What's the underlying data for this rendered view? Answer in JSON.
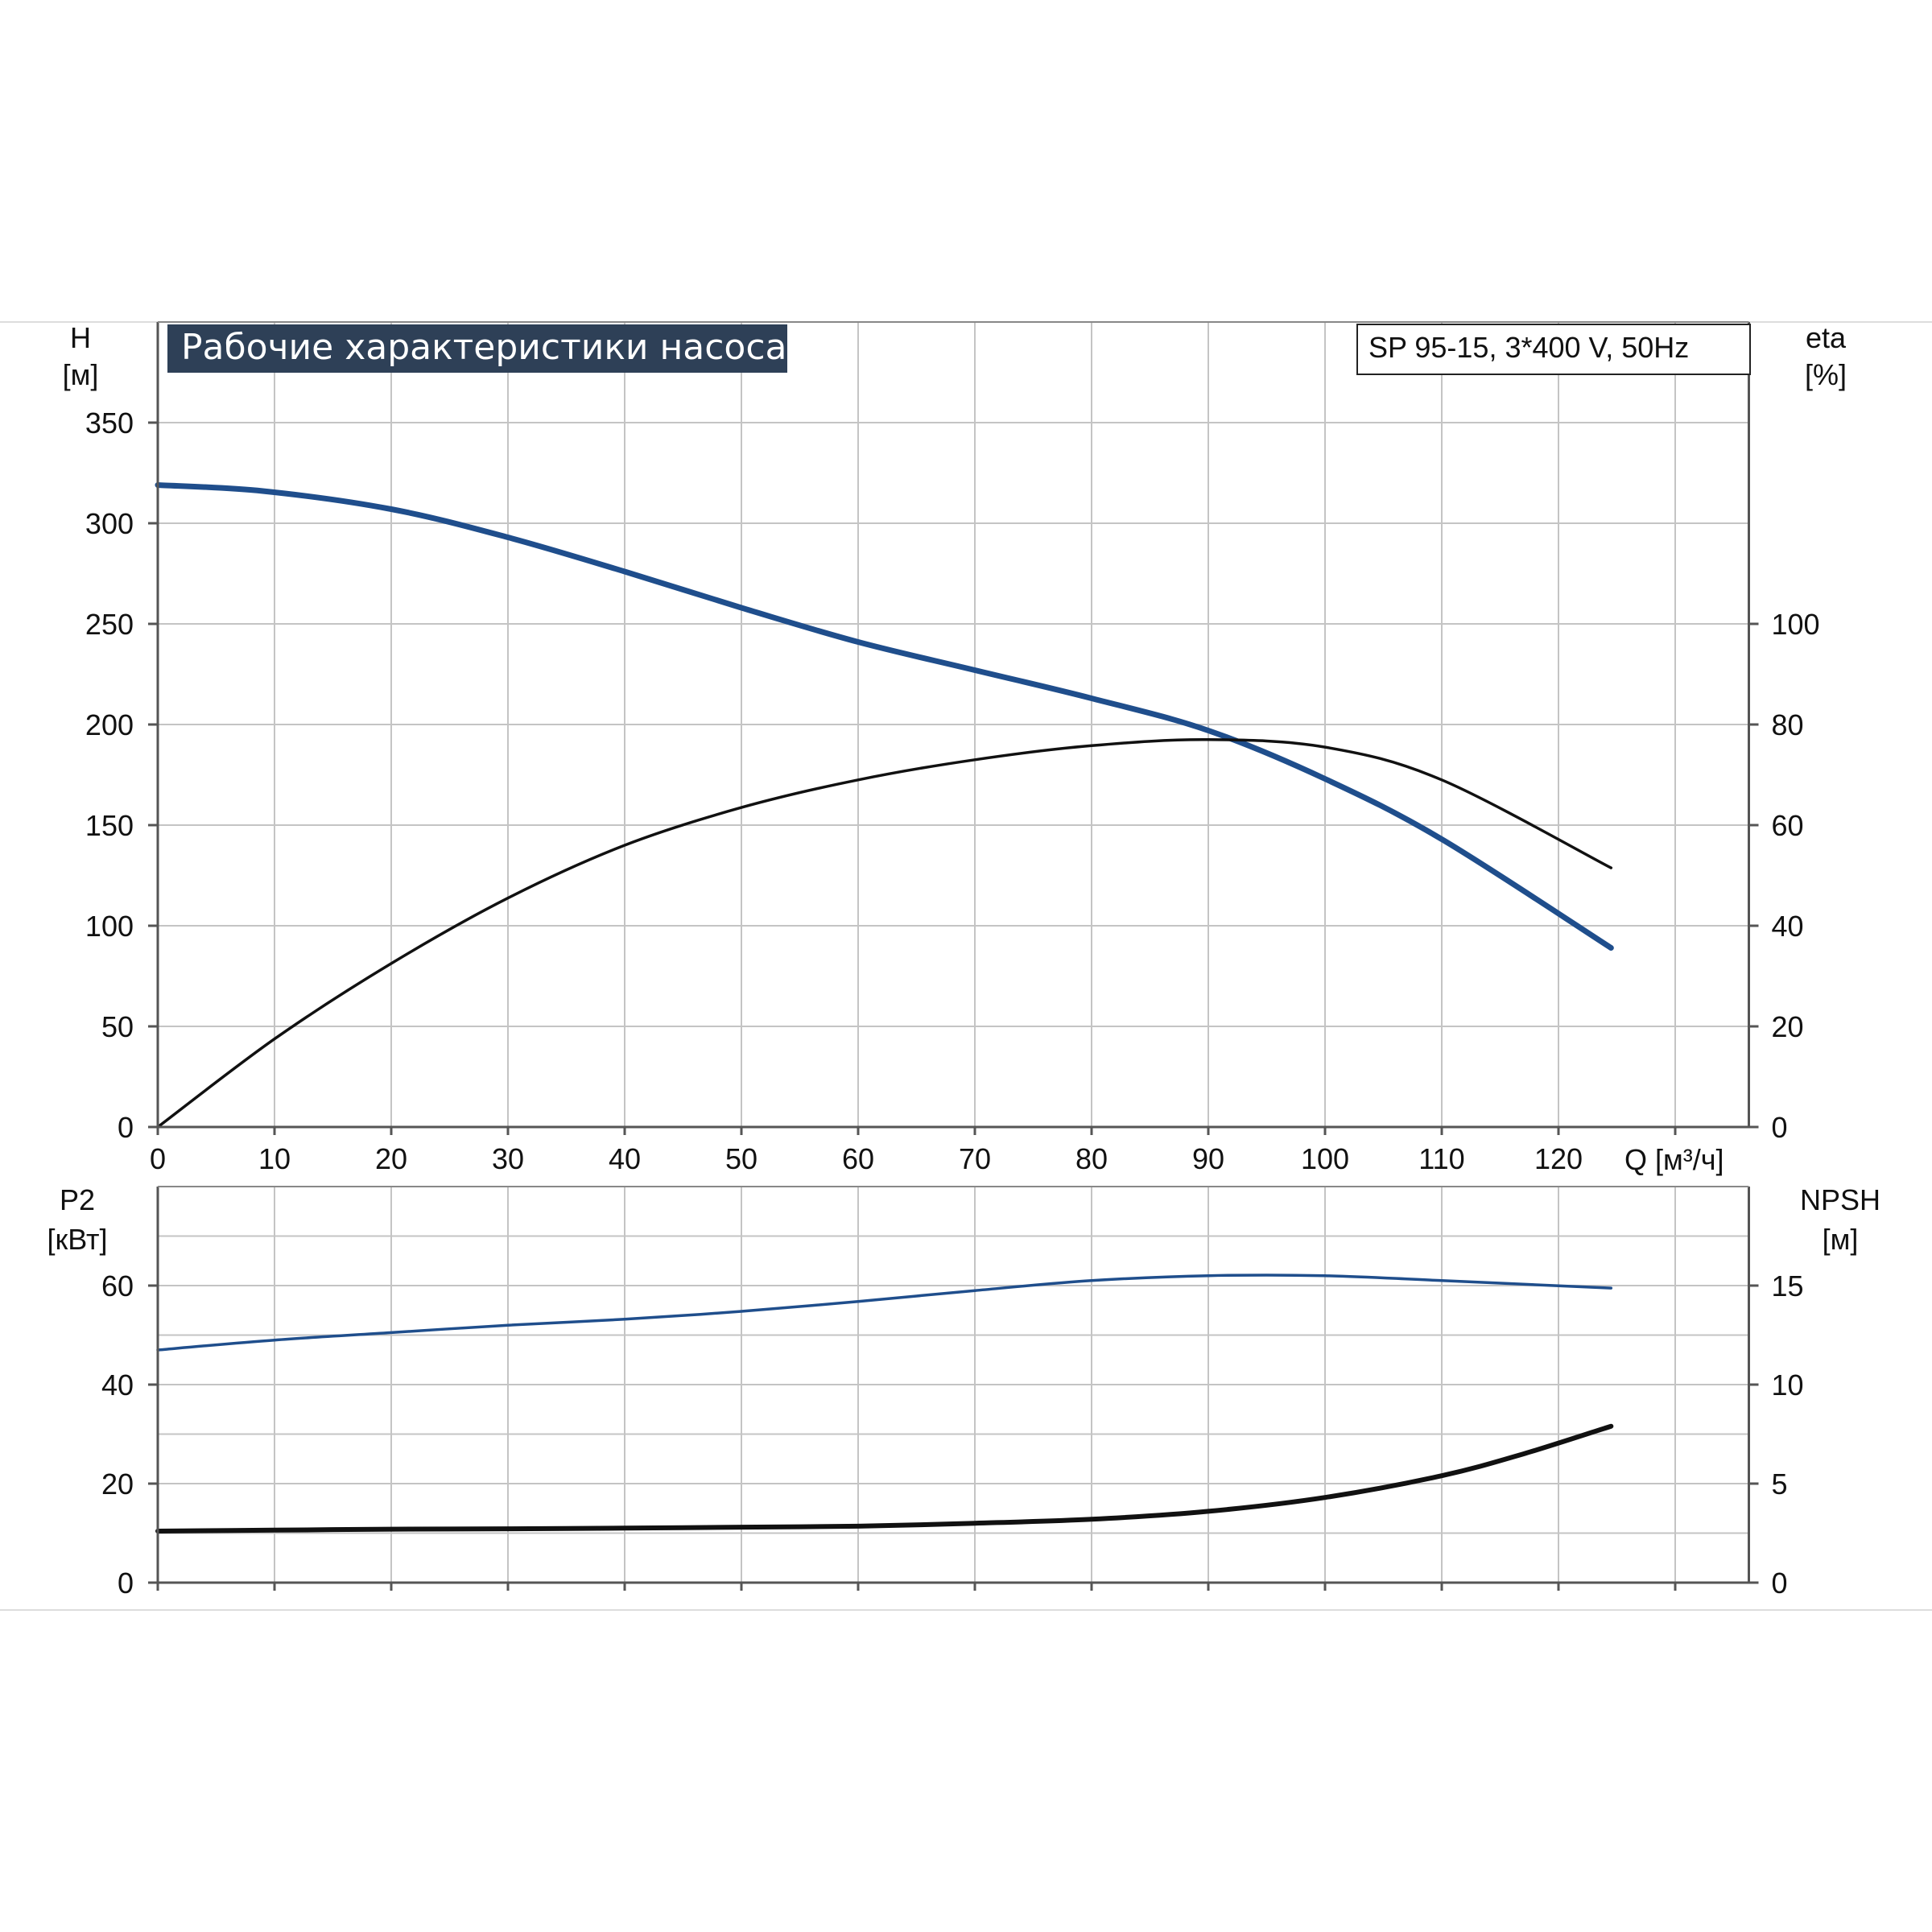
{
  "chart_data": [
    {
      "type": "line",
      "title": "Рабочие характеристики насоса",
      "model_label": "SP 95-15, 3*400 V, 50Hz",
      "xlabel": "Q [м³/ч]",
      "x_ticks": [
        "0",
        "10",
        "20",
        "30",
        "40",
        "50",
        "60",
        "70",
        "80",
        "90",
        "100",
        "110",
        "120"
      ],
      "xlim": [
        0,
        137
      ],
      "left_axis": {
        "label_line1": "H",
        "label_line2": "[м]",
        "ylim": [
          0,
          400
        ],
        "ticks": [
          "0",
          "50",
          "100",
          "150",
          "200",
          "250",
          "300",
          "350"
        ]
      },
      "right_axis": {
        "label_line1": "eta",
        "label_line2": "[%]",
        "ylim": [
          0,
          160
        ],
        "ticks": [
          "0",
          "20",
          "40",
          "60",
          "80",
          "100"
        ]
      },
      "grid": true,
      "series": [
        {
          "axis": "left",
          "color": "#1f4e8c",
          "x": [
            0,
            9,
            20,
            30,
            40,
            50,
            60,
            70,
            80,
            90,
            100,
            110,
            124.5
          ],
          "y": [
            319,
            316,
            307,
            293,
            276,
            258,
            241,
            227,
            213,
            197,
            173,
            143,
            89
          ]
        },
        {
          "axis": "right",
          "color": "#111111",
          "x": [
            0,
            10,
            20,
            30,
            40,
            50,
            60,
            70,
            80,
            90,
            100,
            110,
            124.5
          ],
          "y": [
            0,
            17.5,
            32.5,
            45.5,
            56,
            63.5,
            69,
            73,
            75.8,
            77,
            75.5,
            69,
            51.5
          ]
        }
      ]
    },
    {
      "type": "line",
      "xlim": [
        0,
        137
      ],
      "left_axis": {
        "label_line1": "P2",
        "label_line2": "[кВт]",
        "ylim": [
          0,
          80
        ],
        "ticks": [
          "0",
          "20",
          "40",
          "60"
        ]
      },
      "right_axis": {
        "label_line1": "NPSH",
        "label_line2": "[м]",
        "ylim": [
          0,
          20
        ],
        "ticks": [
          "0",
          "5",
          "10",
          "15"
        ]
      },
      "grid": true,
      "series": [
        {
          "axis": "left",
          "color": "#1f4e8c",
          "x": [
            0,
            10,
            20,
            30,
            40,
            50,
            60,
            70,
            80,
            90,
            100,
            110,
            124.5
          ],
          "y": [
            47,
            49,
            50.5,
            52,
            53.2,
            54.8,
            56.8,
            59,
            61,
            62,
            62,
            61,
            59.5
          ]
        },
        {
          "axis": "right",
          "color": "#111111",
          "x": [
            0,
            10,
            20,
            30,
            40,
            50,
            60,
            70,
            80,
            90,
            100,
            110,
            117,
            124.5
          ],
          "y": [
            2.6,
            2.65,
            2.7,
            2.72,
            2.75,
            2.8,
            2.85,
            3.0,
            3.2,
            3.6,
            4.3,
            5.4,
            6.5,
            7.9
          ]
        }
      ]
    }
  ]
}
